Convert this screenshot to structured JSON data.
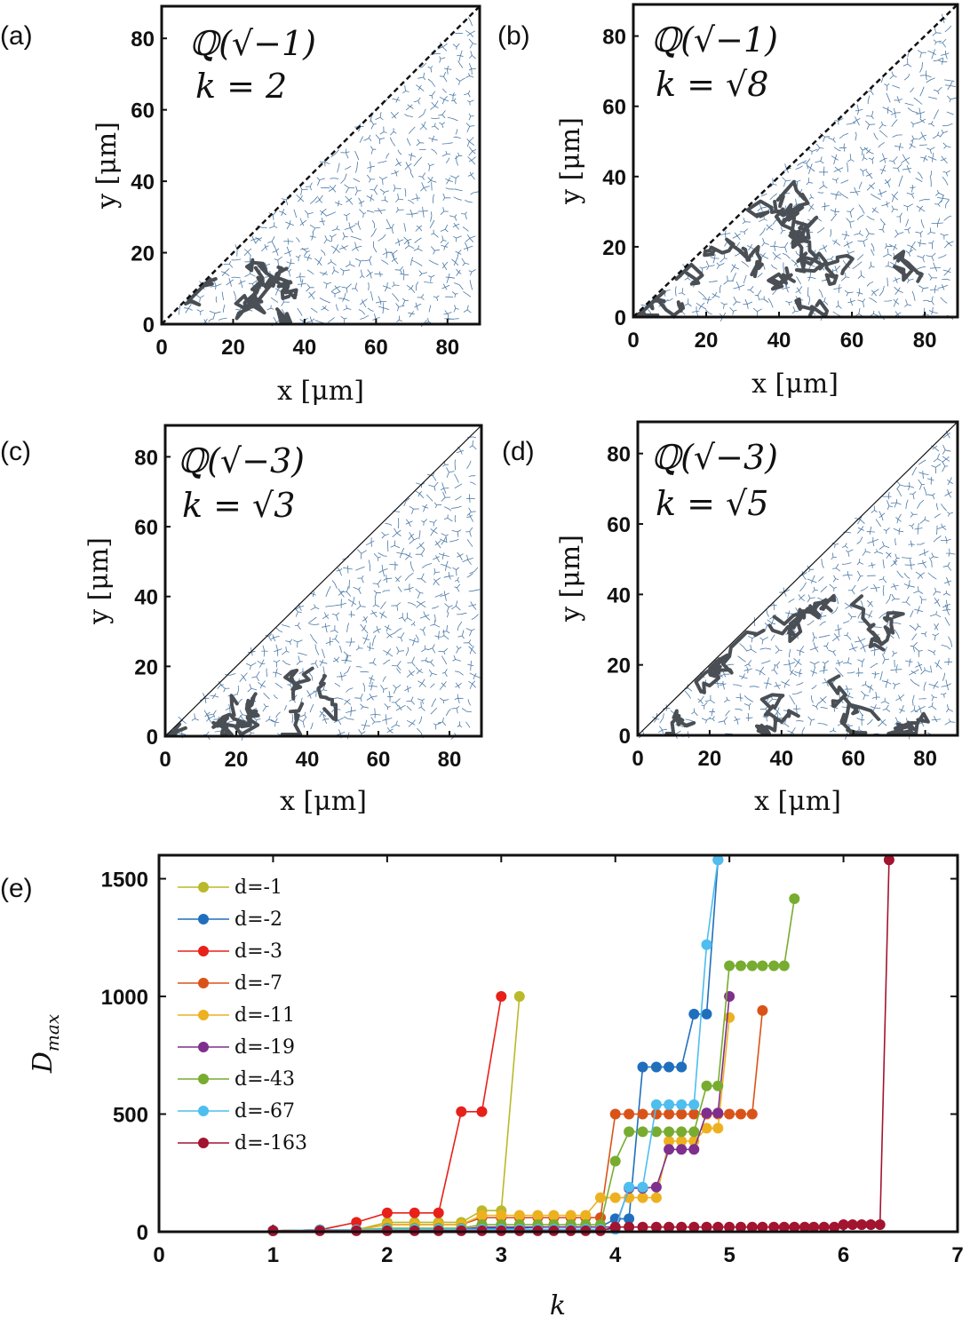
{
  "panels": [
    {
      "id": "a",
      "label": "(a)",
      "field": "ℚ(√−1)",
      "k_label": "k = 2",
      "xlabel": "x [μm]",
      "ylabel": "y [μm]",
      "xticks": [
        "0",
        "20",
        "40",
        "60",
        "80"
      ],
      "yticks": [
        "0",
        "20",
        "40",
        "60",
        "80"
      ],
      "diagonal": "dashed",
      "cluster_extent_x": 40
    },
    {
      "id": "b",
      "label": "(b)",
      "field": "ℚ(√−1)",
      "k_label": "k = √8",
      "xlabel": "x [μm]",
      "ylabel": "y [μm]",
      "xticks": [
        "0",
        "20",
        "40",
        "60",
        "80"
      ],
      "yticks": [
        "0",
        "20",
        "40",
        "60",
        "80"
      ],
      "diagonal": "dashed",
      "cluster_extent_x": 88
    },
    {
      "id": "c",
      "label": "(c)",
      "field": "ℚ(√−3)",
      "k_label": "k = √3",
      "xlabel": "x [μm]",
      "ylabel": "y [μm]",
      "xticks": [
        "0",
        "20",
        "40",
        "60",
        "80"
      ],
      "yticks": [
        "0",
        "20",
        "40",
        "60",
        "80"
      ],
      "diagonal": "solid",
      "cluster_extent_x": 48
    },
    {
      "id": "d",
      "label": "(d)",
      "field": "ℚ(√−3)",
      "k_label": "k = √5",
      "xlabel": "x [μm]",
      "ylabel": "y [μm]",
      "xticks": [
        "0",
        "20",
        "40",
        "60",
        "80"
      ],
      "yticks": [
        "0",
        "20",
        "40",
        "60",
        "80"
      ],
      "diagonal": "solid",
      "cluster_extent_x": 90
    }
  ],
  "chart_data": {
    "type": "line",
    "panel_label": "(e)",
    "title": "",
    "xlabel": "k",
    "ylabel": "D_max",
    "xlim": [
      0,
      7
    ],
    "ylim": [
      0,
      1600
    ],
    "xticks": [
      "0",
      "1",
      "2",
      "3",
      "4",
      "5",
      "6",
      "7"
    ],
    "yticks": [
      "0",
      "500",
      "1000",
      "1500"
    ],
    "legend_position": "top-left",
    "series": [
      {
        "name": "d=-1",
        "color": "#b9b92a",
        "points": [
          [
            1,
            4
          ],
          [
            1.41,
            8
          ],
          [
            1.73,
            8
          ],
          [
            2,
            40
          ],
          [
            2.24,
            40
          ],
          [
            2.45,
            40
          ],
          [
            2.65,
            40
          ],
          [
            2.83,
            90
          ],
          [
            3,
            90
          ],
          [
            3.16,
            1000
          ]
        ]
      },
      {
        "name": "d=-2",
        "color": "#1f6fbd",
        "points": [
          [
            1,
            4
          ],
          [
            1.41,
            8
          ],
          [
            1.73,
            8
          ],
          [
            2,
            8
          ],
          [
            2.24,
            8
          ],
          [
            2.45,
            8
          ],
          [
            2.65,
            8
          ],
          [
            2.83,
            16
          ],
          [
            3,
            16
          ],
          [
            3.16,
            16
          ],
          [
            3.32,
            20
          ],
          [
            3.46,
            20
          ],
          [
            3.61,
            20
          ],
          [
            3.74,
            20
          ],
          [
            3.87,
            20
          ],
          [
            4,
            55
          ],
          [
            4.12,
            55
          ],
          [
            4.24,
            700
          ],
          [
            4.36,
            700
          ],
          [
            4.47,
            700
          ],
          [
            4.58,
            700
          ],
          [
            4.69,
            925
          ],
          [
            4.8,
            925
          ],
          [
            4.9,
            1580
          ]
        ]
      },
      {
        "name": "d=-3",
        "color": "#e8201a",
        "points": [
          [
            1,
            4
          ],
          [
            1.41,
            8
          ],
          [
            1.73,
            40
          ],
          [
            2,
            80
          ],
          [
            2.24,
            80
          ],
          [
            2.45,
            80
          ],
          [
            2.65,
            510
          ],
          [
            2.83,
            510
          ],
          [
            3,
            1000
          ]
        ]
      },
      {
        "name": "d=-7",
        "color": "#d95319",
        "points": [
          [
            1,
            4
          ],
          [
            1.41,
            8
          ],
          [
            1.73,
            8
          ],
          [
            2,
            30
          ],
          [
            2.24,
            30
          ],
          [
            2.45,
            30
          ],
          [
            2.65,
            30
          ],
          [
            2.83,
            60
          ],
          [
            3,
            60
          ],
          [
            3.16,
            60
          ],
          [
            3.32,
            60
          ],
          [
            3.46,
            60
          ],
          [
            3.61,
            60
          ],
          [
            3.74,
            60
          ],
          [
            3.87,
            60
          ],
          [
            4,
            500
          ],
          [
            4.12,
            500
          ],
          [
            4.24,
            500
          ],
          [
            4.36,
            500
          ],
          [
            4.47,
            500
          ],
          [
            4.58,
            500
          ],
          [
            4.69,
            500
          ],
          [
            4.8,
            500
          ],
          [
            4.9,
            500
          ],
          [
            5,
            500
          ],
          [
            5.1,
            500
          ],
          [
            5.2,
            500
          ],
          [
            5.29,
            940
          ]
        ]
      },
      {
        "name": "d=-11",
        "color": "#edb120",
        "points": [
          [
            1,
            4
          ],
          [
            1.41,
            8
          ],
          [
            1.73,
            8
          ],
          [
            2,
            30
          ],
          [
            2.24,
            30
          ],
          [
            2.45,
            30
          ],
          [
            2.65,
            30
          ],
          [
            2.83,
            70
          ],
          [
            3,
            70
          ],
          [
            3.16,
            70
          ],
          [
            3.32,
            70
          ],
          [
            3.46,
            70
          ],
          [
            3.61,
            70
          ],
          [
            3.74,
            70
          ],
          [
            3.87,
            145
          ],
          [
            4,
            145
          ],
          [
            4.12,
            145
          ],
          [
            4.24,
            145
          ],
          [
            4.36,
            145
          ],
          [
            4.47,
            385
          ],
          [
            4.58,
            385
          ],
          [
            4.69,
            385
          ],
          [
            4.8,
            440
          ],
          [
            4.9,
            440
          ],
          [
            5,
            910
          ]
        ]
      },
      {
        "name": "d=-19",
        "color": "#7e2f8e",
        "points": [
          [
            1,
            4
          ],
          [
            1.41,
            8
          ],
          [
            1.73,
            8
          ],
          [
            2,
            10
          ],
          [
            2.24,
            10
          ],
          [
            2.45,
            10
          ],
          [
            2.65,
            10
          ],
          [
            2.83,
            20
          ],
          [
            3,
            20
          ],
          [
            3.16,
            20
          ],
          [
            3.32,
            20
          ],
          [
            3.46,
            20
          ],
          [
            3.61,
            20
          ],
          [
            3.74,
            20
          ],
          [
            3.87,
            20
          ],
          [
            4,
            20
          ],
          [
            4.12,
            185
          ],
          [
            4.24,
            185
          ],
          [
            4.36,
            190
          ],
          [
            4.47,
            350
          ],
          [
            4.58,
            350
          ],
          [
            4.69,
            350
          ],
          [
            4.8,
            505
          ],
          [
            4.9,
            505
          ],
          [
            5,
            1000
          ]
        ]
      },
      {
        "name": "d=-43",
        "color": "#77ac30",
        "points": [
          [
            1,
            4
          ],
          [
            1.41,
            8
          ],
          [
            1.73,
            8
          ],
          [
            2,
            15
          ],
          [
            2.24,
            15
          ],
          [
            2.45,
            15
          ],
          [
            2.65,
            15
          ],
          [
            2.83,
            30
          ],
          [
            3,
            30
          ],
          [
            3.16,
            30
          ],
          [
            3.32,
            30
          ],
          [
            3.46,
            30
          ],
          [
            3.61,
            30
          ],
          [
            3.74,
            30
          ],
          [
            3.87,
            30
          ],
          [
            4,
            300
          ],
          [
            4.12,
            425
          ],
          [
            4.24,
            425
          ],
          [
            4.36,
            425
          ],
          [
            4.47,
            425
          ],
          [
            4.58,
            425
          ],
          [
            4.69,
            425
          ],
          [
            4.8,
            620
          ],
          [
            4.9,
            620
          ],
          [
            5,
            1130
          ],
          [
            5.1,
            1130
          ],
          [
            5.2,
            1130
          ],
          [
            5.29,
            1130
          ],
          [
            5.39,
            1130
          ],
          [
            5.48,
            1130
          ],
          [
            5.57,
            1415
          ]
        ]
      },
      {
        "name": "d=-67",
        "color": "#4dbeee",
        "points": [
          [
            1,
            4
          ],
          [
            1.41,
            8
          ],
          [
            1.73,
            8
          ],
          [
            2,
            10
          ],
          [
            2.24,
            10
          ],
          [
            2.45,
            10
          ],
          [
            2.65,
            10
          ],
          [
            2.83,
            10
          ],
          [
            3,
            10
          ],
          [
            3.16,
            10
          ],
          [
            3.32,
            10
          ],
          [
            3.46,
            10
          ],
          [
            3.61,
            10
          ],
          [
            3.74,
            10
          ],
          [
            3.87,
            10
          ],
          [
            4,
            10
          ],
          [
            4.12,
            190
          ],
          [
            4.24,
            190
          ],
          [
            4.36,
            540
          ],
          [
            4.47,
            540
          ],
          [
            4.58,
            540
          ],
          [
            4.69,
            540
          ],
          [
            4.8,
            1220
          ],
          [
            4.9,
            1580
          ]
        ]
      },
      {
        "name": "d=-163",
        "color": "#a2142f",
        "points": [
          [
            1,
            4
          ],
          [
            1.41,
            4
          ],
          [
            1.73,
            4
          ],
          [
            2,
            4
          ],
          [
            2.24,
            4
          ],
          [
            2.45,
            4
          ],
          [
            2.65,
            4
          ],
          [
            2.83,
            4
          ],
          [
            3,
            4
          ],
          [
            3.16,
            4
          ],
          [
            3.32,
            4
          ],
          [
            3.46,
            4
          ],
          [
            3.61,
            4
          ],
          [
            3.74,
            4
          ],
          [
            3.87,
            4
          ],
          [
            4,
            20
          ],
          [
            4.12,
            20
          ],
          [
            4.24,
            20
          ],
          [
            4.36,
            20
          ],
          [
            4.47,
            20
          ],
          [
            4.58,
            20
          ],
          [
            4.69,
            20
          ],
          [
            4.8,
            20
          ],
          [
            4.9,
            20
          ],
          [
            5,
            20
          ],
          [
            5.1,
            20
          ],
          [
            5.2,
            20
          ],
          [
            5.29,
            20
          ],
          [
            5.39,
            20
          ],
          [
            5.48,
            20
          ],
          [
            5.57,
            20
          ],
          [
            5.66,
            20
          ],
          [
            5.74,
            20
          ],
          [
            5.83,
            20
          ],
          [
            5.92,
            20
          ],
          [
            6,
            30
          ],
          [
            6.08,
            30
          ],
          [
            6.16,
            30
          ],
          [
            6.24,
            30
          ],
          [
            6.32,
            30
          ],
          [
            6.4,
            1580
          ]
        ]
      }
    ]
  }
}
